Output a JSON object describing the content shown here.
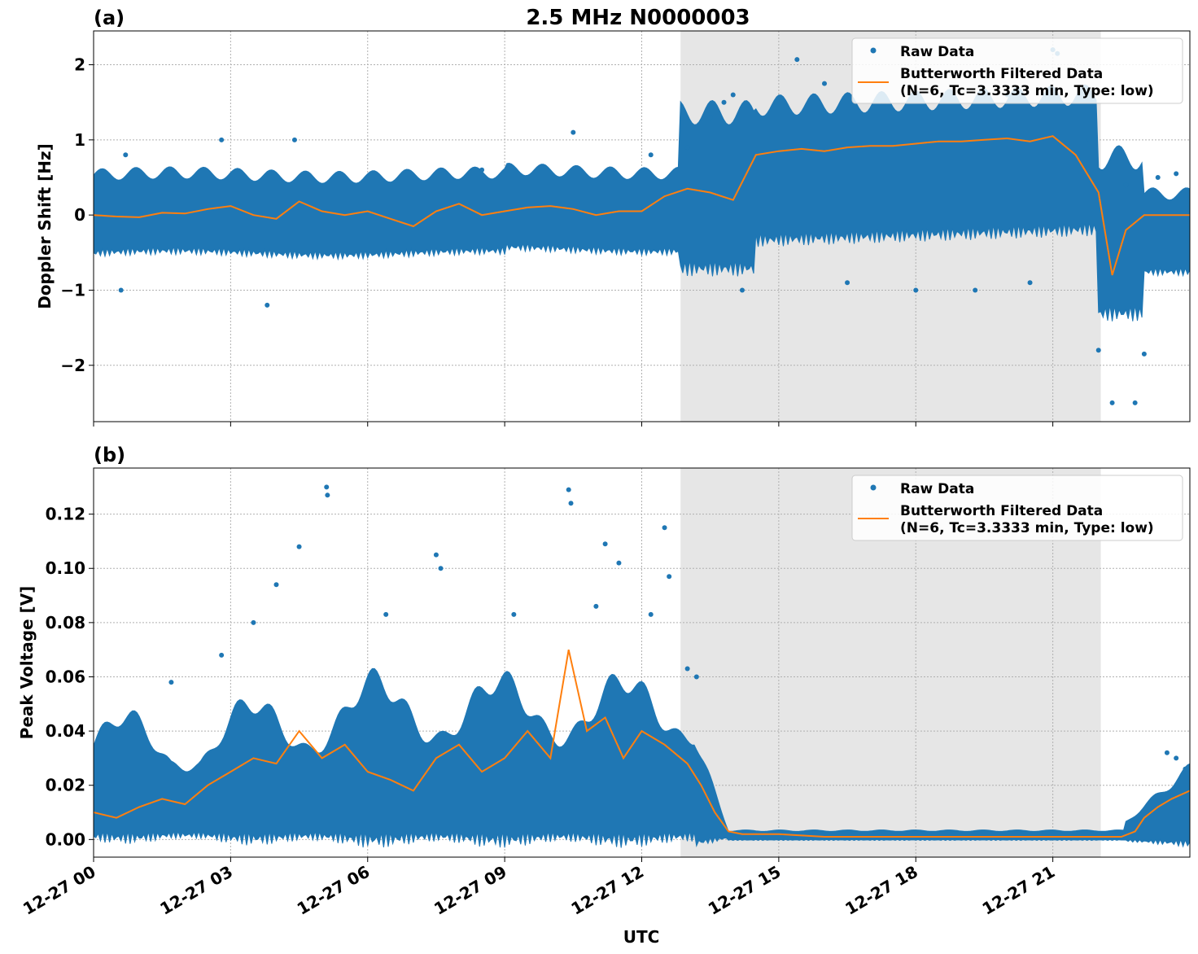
{
  "title": "2.5 MHz N0000003",
  "xlabel": "UTC",
  "x_ticks": [
    "12-27 00",
    "12-27 03",
    "12-27 06",
    "12-27 09",
    "12-27 12",
    "12-27 15",
    "12-27 18",
    "12-27 21"
  ],
  "x_tick_hours": [
    0,
    3,
    6,
    9,
    12,
    15,
    18,
    21
  ],
  "x_range_hours": [
    0,
    24
  ],
  "shaded_region_hours": [
    12.85,
    22.05
  ],
  "colors": {
    "raw": "#1f77b4",
    "filtered": "#ff7f0e",
    "shade": "#e6e6e6",
    "grid": "#b0b0b0"
  },
  "legend": {
    "raw": "Raw Data",
    "filtered_line1": "Butterworth Filtered Data",
    "filtered_line2": "(N=6, Tc=3.3333 min, Type: low)"
  },
  "chart_data": [
    {
      "panel": "(a)",
      "type": "scatter",
      "ylabel": "Doppler Shift [Hz]",
      "ylim": [
        -2.75,
        2.45
      ],
      "y_ticks": [
        2,
        1,
        0,
        -1,
        -2
      ],
      "y_tick_labels": [
        "2",
        "1",
        "0",
        "−1",
        "−2"
      ],
      "legend_loc": "upper right",
      "series": [
        {
          "name": "Butterworth Filtered Data",
          "kind": "line",
          "x": [
            0,
            0.5,
            1.0,
            1.5,
            2.0,
            2.5,
            3.0,
            3.5,
            4.0,
            4.5,
            5.0,
            5.5,
            6.0,
            6.5,
            7.0,
            7.5,
            8.0,
            8.5,
            9.0,
            9.5,
            10.0,
            10.5,
            11.0,
            11.5,
            12.0,
            12.5,
            13.0,
            13.5,
            14.0,
            14.5,
            15.0,
            15.5,
            16.0,
            16.5,
            17.0,
            17.5,
            18.0,
            18.5,
            19.0,
            19.5,
            20.0,
            20.5,
            21.0,
            21.5,
            22.0,
            22.3,
            22.6,
            23.0,
            23.5,
            24.0
          ],
          "y": [
            0.0,
            -0.02,
            -0.03,
            0.03,
            0.02,
            0.08,
            0.12,
            0.0,
            -0.05,
            0.18,
            0.05,
            0.0,
            0.05,
            -0.05,
            -0.15,
            0.05,
            0.15,
            0.0,
            0.05,
            0.1,
            0.12,
            0.08,
            0.0,
            0.05,
            0.05,
            0.25,
            0.35,
            0.3,
            0.2,
            0.8,
            0.85,
            0.88,
            0.85,
            0.9,
            0.92,
            0.92,
            0.95,
            0.98,
            0.98,
            1.0,
            1.02,
            0.98,
            1.05,
            0.8,
            0.3,
            -0.8,
            -0.2,
            0.0,
            0.0,
            0.0
          ]
        },
        {
          "name": "Raw Data",
          "kind": "points",
          "x": [
            0.6,
            0.7,
            2.8,
            3.8,
            4.4,
            8.5,
            10.5,
            12.2,
            13.0,
            13.5,
            13.8,
            14.0,
            14.2,
            15.4,
            16.0,
            16.5,
            17.3,
            18.0,
            18.8,
            19.3,
            20.0,
            20.5,
            21.0,
            21.1,
            21.8,
            22.0,
            22.3,
            22.6,
            22.8,
            23.0,
            23.3,
            23.7
          ],
          "y": [
            -1.0,
            0.8,
            1.0,
            -1.2,
            1.0,
            0.6,
            1.1,
            0.8,
            0.9,
            1.3,
            1.5,
            1.6,
            -1.0,
            2.07,
            1.75,
            -0.9,
            1.5,
            -1.0,
            1.6,
            -1.0,
            1.6,
            -0.9,
            2.2,
            2.15,
            1.0,
            -1.8,
            -2.5,
            0.4,
            -2.5,
            -1.85,
            0.5,
            0.55
          ]
        }
      ]
    },
    {
      "panel": "(b)",
      "type": "scatter",
      "ylabel": "Peak Voltage [V]",
      "ylim": [
        -0.0065,
        0.137
      ],
      "y_ticks": [
        0.12,
        0.1,
        0.08,
        0.06,
        0.04,
        0.02,
        0.0
      ],
      "y_tick_labels": [
        "0.12",
        "0.10",
        "0.08",
        "0.06",
        "0.04",
        "0.02",
        "0.00"
      ],
      "legend_loc": "upper right",
      "series": [
        {
          "name": "Butterworth Filtered Data",
          "kind": "line",
          "x": [
            0,
            0.5,
            1.0,
            1.5,
            2.0,
            2.5,
            3.0,
            3.5,
            4.0,
            4.5,
            5.0,
            5.5,
            6.0,
            6.5,
            7.0,
            7.5,
            8.0,
            8.5,
            9.0,
            9.5,
            10.0,
            10.4,
            10.8,
            11.2,
            11.6,
            12.0,
            12.5,
            13.0,
            13.3,
            13.6,
            13.9,
            14.2,
            15.0,
            16.0,
            17.0,
            18.0,
            19.0,
            20.0,
            21.0,
            22.0,
            22.5,
            22.8,
            23.0,
            23.3,
            23.6,
            24.0
          ],
          "y": [
            0.01,
            0.008,
            0.012,
            0.015,
            0.013,
            0.02,
            0.025,
            0.03,
            0.028,
            0.04,
            0.03,
            0.035,
            0.025,
            0.022,
            0.018,
            0.03,
            0.035,
            0.025,
            0.03,
            0.04,
            0.03,
            0.07,
            0.04,
            0.045,
            0.03,
            0.04,
            0.035,
            0.028,
            0.02,
            0.01,
            0.003,
            0.002,
            0.002,
            0.001,
            0.001,
            0.001,
            0.001,
            0.001,
            0.001,
            0.001,
            0.001,
            0.003,
            0.008,
            0.012,
            0.015,
            0.018
          ]
        },
        {
          "name": "Raw Data",
          "kind": "points",
          "x": [
            1.7,
            2.8,
            3.5,
            4.0,
            4.5,
            5.1,
            5.12,
            6.4,
            7.5,
            7.6,
            9.2,
            10.4,
            10.45,
            11.0,
            11.2,
            11.5,
            12.2,
            12.5,
            12.6,
            13.0,
            13.2,
            23.5,
            23.7,
            23.9
          ],
          "y": [
            0.058,
            0.068,
            0.08,
            0.094,
            0.108,
            0.13,
            0.127,
            0.083,
            0.105,
            0.1,
            0.083,
            0.129,
            0.124,
            0.086,
            0.109,
            0.102,
            0.083,
            0.115,
            0.097,
            0.063,
            0.06,
            0.032,
            0.03,
            0.026
          ]
        }
      ]
    }
  ]
}
